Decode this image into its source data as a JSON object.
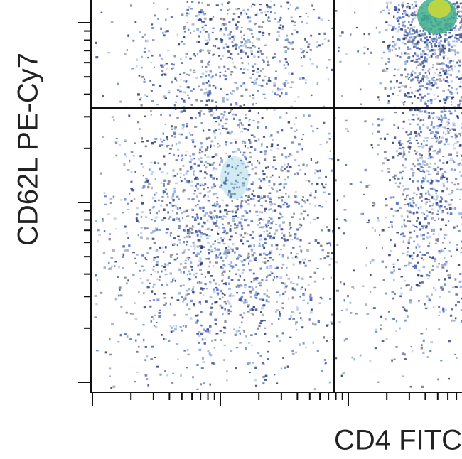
{
  "chart_data": {
    "type": "scatter",
    "x_label": "CD4 FITC",
    "y_label": "CD62L PE-Cy7"
  }
}
